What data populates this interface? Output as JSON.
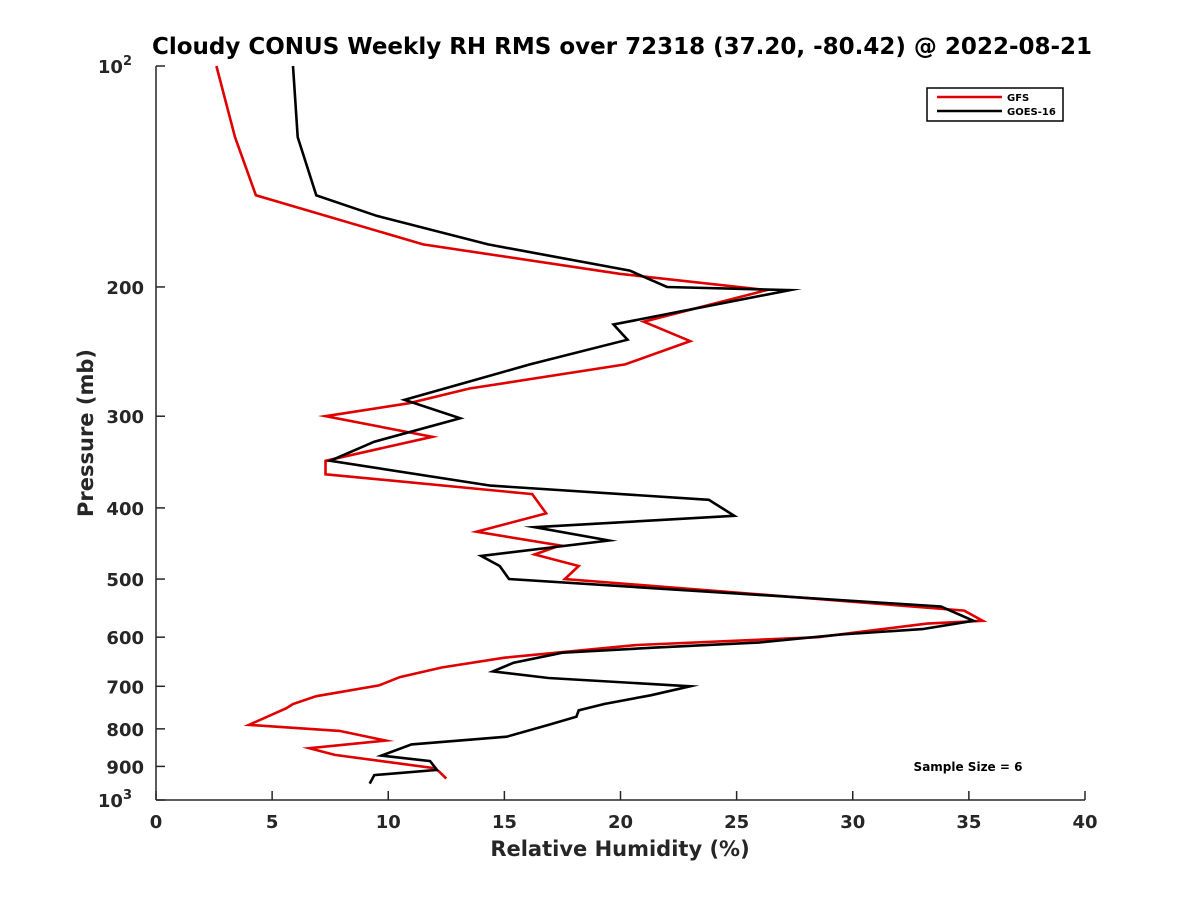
{
  "chart_data": {
    "type": "line",
    "title": "Cloudy CONUS Weekly RH RMS over 72318 (37.20, -80.42) @ 2022-08-21",
    "xlabel": "Relative Humidity (%)",
    "ylabel": "Pressure (mb)",
    "xlim": [
      0,
      40
    ],
    "ylim": [
      100,
      1000
    ],
    "yscale": "log",
    "y_reversed": true,
    "xticks": [
      0,
      5,
      10,
      15,
      20,
      25,
      30,
      35,
      40
    ],
    "yticks": [
      {
        "value": 100,
        "label": "10",
        "sup": "2"
      },
      {
        "value": 200,
        "label": "200",
        "sup": ""
      },
      {
        "value": 300,
        "label": "300",
        "sup": ""
      },
      {
        "value": 400,
        "label": "400",
        "sup": ""
      },
      {
        "value": 500,
        "label": "500",
        "sup": ""
      },
      {
        "value": 600,
        "label": "600",
        "sup": ""
      },
      {
        "value": 700,
        "label": "700",
        "sup": ""
      },
      {
        "value": 800,
        "label": "800",
        "sup": ""
      },
      {
        "value": 900,
        "label": "900",
        "sup": ""
      },
      {
        "value": 1000,
        "label": "10",
        "sup": "3"
      }
    ],
    "grid": false,
    "legend_position": "top-right",
    "annotation": "Sample Size = 6",
    "series": [
      {
        "name": "GFS",
        "color": "#e00000",
        "points": [
          [
            2.6,
            100
          ],
          [
            3.4,
            125
          ],
          [
            4.3,
            150
          ],
          [
            11.5,
            175
          ],
          [
            20,
            192
          ],
          [
            26.3,
            202
          ],
          [
            21,
            223
          ],
          [
            23,
            237
          ],
          [
            20.2,
            255
          ],
          [
            13.5,
            275
          ],
          [
            10.9,
            288
          ],
          [
            7.3,
            300
          ],
          [
            11.9,
            320
          ],
          [
            7.3,
            345
          ],
          [
            7.3,
            360
          ],
          [
            16.2,
            383
          ],
          [
            16.8,
            407
          ],
          [
            13.8,
            431
          ],
          [
            17.4,
            450
          ],
          [
            16.3,
            463
          ],
          [
            18.2,
            480
          ],
          [
            17.6,
            500
          ],
          [
            34.8,
            552
          ],
          [
            35.6,
            570
          ],
          [
            33.2,
            575
          ],
          [
            31.3,
            585
          ],
          [
            28.5,
            600
          ],
          [
            20.7,
            615
          ],
          [
            15,
            640
          ],
          [
            12.3,
            660
          ],
          [
            10.5,
            680
          ],
          [
            9.6,
            698
          ],
          [
            6.9,
            722
          ],
          [
            5.9,
            740
          ],
          [
            5.6,
            750
          ],
          [
            4,
            790
          ],
          [
            7.9,
            805
          ],
          [
            9.9,
            830
          ],
          [
            6.6,
            850
          ],
          [
            7.7,
            868
          ],
          [
            12,
            905
          ],
          [
            12.2,
            915
          ],
          [
            12.5,
            935
          ]
        ]
      },
      {
        "name": "GOES-16",
        "color": "#000000",
        "points": [
          [
            5.9,
            100
          ],
          [
            6.1,
            125
          ],
          [
            6.9,
            150
          ],
          [
            9.5,
            160
          ],
          [
            14.3,
            175
          ],
          [
            20.4,
            190
          ],
          [
            22,
            200
          ],
          [
            27.3,
            202
          ],
          [
            19.7,
            225
          ],
          [
            20.3,
            236
          ],
          [
            16.1,
            255
          ],
          [
            10.7,
            285
          ],
          [
            13.1,
            302
          ],
          [
            9.4,
            325
          ],
          [
            7.5,
            345
          ],
          [
            14.4,
            373
          ],
          [
            23.8,
            390
          ],
          [
            24.9,
            410
          ],
          [
            16.3,
            425
          ],
          [
            19.5,
            443
          ],
          [
            14,
            465
          ],
          [
            14.8,
            480
          ],
          [
            15.2,
            500
          ],
          [
            33.8,
            545
          ],
          [
            35.2,
            570
          ],
          [
            33,
            585
          ],
          [
            29.5,
            595
          ],
          [
            26,
            610
          ],
          [
            21.5,
            620
          ],
          [
            17.5,
            630
          ],
          [
            15.4,
            650
          ],
          [
            14.5,
            668
          ],
          [
            16.9,
            682
          ],
          [
            23,
            700
          ],
          [
            21.3,
            720
          ],
          [
            19.3,
            740
          ],
          [
            18.2,
            755
          ],
          [
            18.1,
            770
          ],
          [
            16.9,
            790
          ],
          [
            15.1,
            820
          ],
          [
            11,
            840
          ],
          [
            9.7,
            870
          ],
          [
            11.8,
            885
          ],
          [
            12.1,
            910
          ],
          [
            9.4,
            925
          ],
          [
            9.2,
            950
          ]
        ]
      }
    ]
  }
}
